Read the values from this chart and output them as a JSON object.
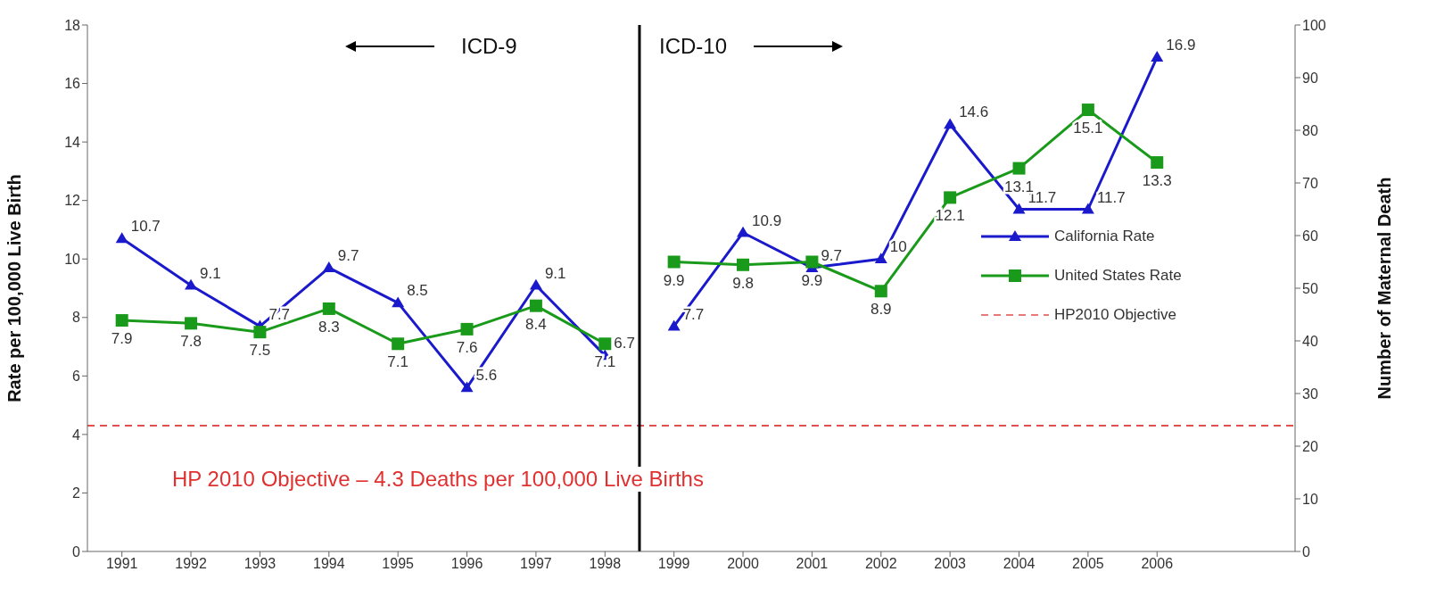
{
  "chart_data": {
    "type": "line",
    "xlabel": null,
    "ylabel": "Rate per 100,000 Live Birth",
    "y2label": "Number of Maternal Death",
    "x": [
      1991,
      1992,
      1993,
      1994,
      1995,
      1996,
      1997,
      1998,
      1999,
      2000,
      2001,
      2002,
      2003,
      2004,
      2005,
      2006
    ],
    "xlim": [
      1990.5,
      2008
    ],
    "xticks": [
      1991,
      1992,
      1993,
      1994,
      1995,
      1996,
      1997,
      1998,
      1999,
      2000,
      2001,
      2002,
      2003,
      2004,
      2005,
      2006
    ],
    "ylim": [
      0,
      18
    ],
    "yticks": [
      0,
      2,
      4,
      6,
      8,
      10,
      12,
      14,
      16,
      18
    ],
    "y2lim": [
      0,
      100
    ],
    "y2ticks": [
      0,
      10,
      20,
      30,
      40,
      50,
      60,
      70,
      80,
      90,
      100
    ],
    "series": [
      {
        "name": "California Rate",
        "color": "#1a1acc",
        "marker": "triangle",
        "values": [
          10.7,
          9.1,
          7.7,
          9.7,
          8.5,
          5.6,
          9.1,
          6.7,
          7.7,
          10.9,
          9.7,
          10,
          14.6,
          11.7,
          11.7,
          16.9
        ]
      },
      {
        "name": "United States Rate",
        "color": "#1a9a1a",
        "marker": "square",
        "values": [
          7.9,
          7.8,
          7.5,
          8.3,
          7.1,
          7.6,
          8.4,
          7.1,
          9.9,
          9.8,
          9.9,
          8.9,
          12.1,
          13.1,
          15.1,
          13.3
        ]
      }
    ],
    "ref_lines": [
      {
        "axis": "y",
        "value": 4.3,
        "label": "HP2010 Objective",
        "color": "#e05050",
        "line_style": "dashed"
      },
      {
        "axis": "x",
        "value": 1998.5,
        "color": "#000000",
        "line_style": "solid"
      }
    ],
    "annotations": [
      "ICD-9",
      "ICD-10",
      "HP 2010 Objective – 4.3 Deaths per 100,000 Live Births"
    ],
    "data_labels": true,
    "legend": "right"
  }
}
